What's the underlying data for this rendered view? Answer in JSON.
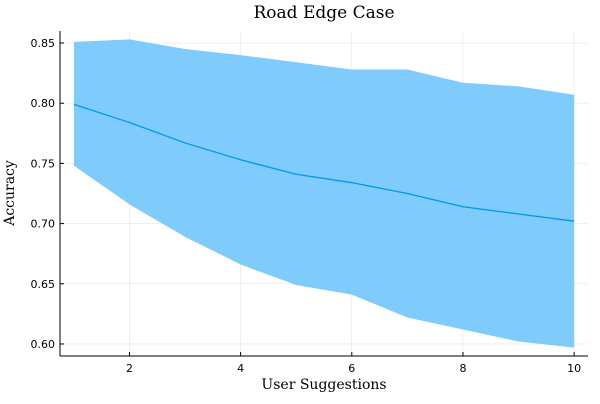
{
  "chart_data": {
    "type": "line",
    "title": "Road Edge Case",
    "xlabel": "User Suggestions",
    "ylabel": "Accuracy",
    "xlim": [
      0.75,
      10.25
    ],
    "ylim": [
      0.59,
      0.86
    ],
    "x_ticks": [
      2,
      4,
      6,
      8,
      10
    ],
    "y_ticks": [
      0.6,
      0.65,
      0.7,
      0.75,
      0.8,
      0.85
    ],
    "x_tick_labels": [
      "2",
      "4",
      "6",
      "8",
      "10"
    ],
    "y_tick_labels": [
      "0.60",
      "0.65",
      "0.70",
      "0.75",
      "0.80",
      "0.85"
    ],
    "grid": true,
    "legend": "none",
    "series": [
      {
        "x": [
          1,
          2,
          3,
          4,
          5,
          6,
          7,
          8,
          9,
          10
        ],
        "values": [
          0.799,
          0.784,
          0.767,
          0.753,
          0.741,
          0.734,
          0.725,
          0.714,
          0.708,
          0.702
        ],
        "lower": [
          0.748,
          0.716,
          0.689,
          0.666,
          0.649,
          0.641,
          0.622,
          0.612,
          0.602,
          0.597
        ],
        "upper": [
          0.851,
          0.853,
          0.845,
          0.84,
          0.834,
          0.828,
          0.828,
          0.817,
          0.814,
          0.807
        ],
        "color": "#0097e6",
        "band_color": "#7fcbfb"
      }
    ]
  }
}
